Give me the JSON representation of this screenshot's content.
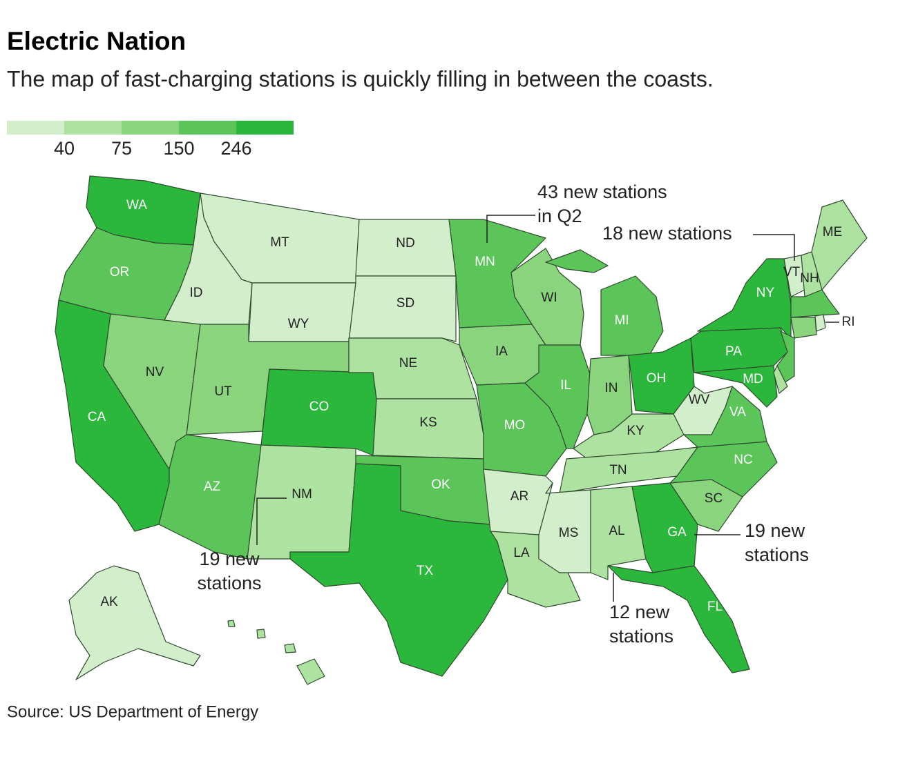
{
  "chart_data": {
    "type": "choropleth",
    "title": "Electric Nation",
    "subtitle": "The map of fast-charging stations is quickly filling in between the coasts.",
    "legend": {
      "colors": [
        "#d3eecb",
        "#ade2a0",
        "#8ad47e",
        "#5cc55a",
        "#2bb73b"
      ],
      "breaks": [
        40,
        75,
        150,
        246
      ]
    },
    "states": [
      {
        "label": "WA",
        "color": "#2bb73b"
      },
      {
        "label": "OR",
        "color": "#5cc55a"
      },
      {
        "label": "CA",
        "color": "#2bb73b"
      },
      {
        "label": "ID",
        "color": "#d3eecb"
      },
      {
        "label": "NV",
        "color": "#8ad47e"
      },
      {
        "label": "MT",
        "color": "#d3eecb"
      },
      {
        "label": "WY",
        "color": "#d3eecb"
      },
      {
        "label": "UT",
        "color": "#8ad47e"
      },
      {
        "label": "CO",
        "color": "#2bb73b"
      },
      {
        "label": "AZ",
        "color": "#5cc55a"
      },
      {
        "label": "NM",
        "color": "#ade2a0"
      },
      {
        "label": "ND",
        "color": "#d3eecb"
      },
      {
        "label": "SD",
        "color": "#d3eecb"
      },
      {
        "label": "NE",
        "color": "#ade2a0"
      },
      {
        "label": "KS",
        "color": "#ade2a0"
      },
      {
        "label": "OK",
        "color": "#5cc55a"
      },
      {
        "label": "TX",
        "color": "#2bb73b"
      },
      {
        "label": "MN",
        "color": "#5cc55a"
      },
      {
        "label": "IA",
        "color": "#8ad47e"
      },
      {
        "label": "MO",
        "color": "#5cc55a"
      },
      {
        "label": "AR",
        "color": "#d3eecb"
      },
      {
        "label": "LA",
        "color": "#ade2a0"
      },
      {
        "label": "WI",
        "color": "#8ad47e"
      },
      {
        "label": "IL",
        "color": "#5cc55a"
      },
      {
        "label": "MI",
        "color": "#5cc55a"
      },
      {
        "label": "IN",
        "color": "#8ad47e"
      },
      {
        "label": "OH",
        "color": "#2bb73b"
      },
      {
        "label": "KY",
        "color": "#ade2a0"
      },
      {
        "label": "TN",
        "color": "#ade2a0"
      },
      {
        "label": "MS",
        "color": "#d3eecb"
      },
      {
        "label": "AL",
        "color": "#ade2a0"
      },
      {
        "label": "GA",
        "color": "#2bb73b"
      },
      {
        "label": "FL",
        "color": "#2bb73b"
      },
      {
        "label": "SC",
        "color": "#8ad47e"
      },
      {
        "label": "NC",
        "color": "#5cc55a"
      },
      {
        "label": "VA",
        "color": "#5cc55a"
      },
      {
        "label": "WV",
        "color": "#d3eecb"
      },
      {
        "label": "PA",
        "color": "#2bb73b"
      },
      {
        "label": "NY",
        "color": "#2bb73b"
      },
      {
        "label": null,
        "color": "#5cc55a"
      },
      {
        "label": "MD",
        "color": "#2bb73b"
      },
      {
        "label": null,
        "color": "#ade2a0"
      },
      {
        "label": "VT",
        "color": "#d3eecb"
      },
      {
        "label": "NH",
        "color": "#ade2a0"
      },
      {
        "label": "ME",
        "color": "#ade2a0"
      },
      {
        "label": null,
        "color": "#5cc55a"
      },
      {
        "label": null,
        "color": "#8ad47e"
      },
      {
        "label": "RI",
        "color": "#d3eecb"
      },
      {
        "label": "AK",
        "color": "#d3eecb"
      },
      {
        "label": null,
        "color": "#ade2a0"
      }
    ],
    "annotations": [
      [
        "43 new stations",
        "in Q2"
      ],
      [
        "18 new stations"
      ],
      [
        "19 new",
        "stations"
      ],
      [
        "19 new",
        "stations"
      ],
      [
        "12 new",
        "stations"
      ]
    ],
    "source": "Source: US Department of Energy"
  }
}
